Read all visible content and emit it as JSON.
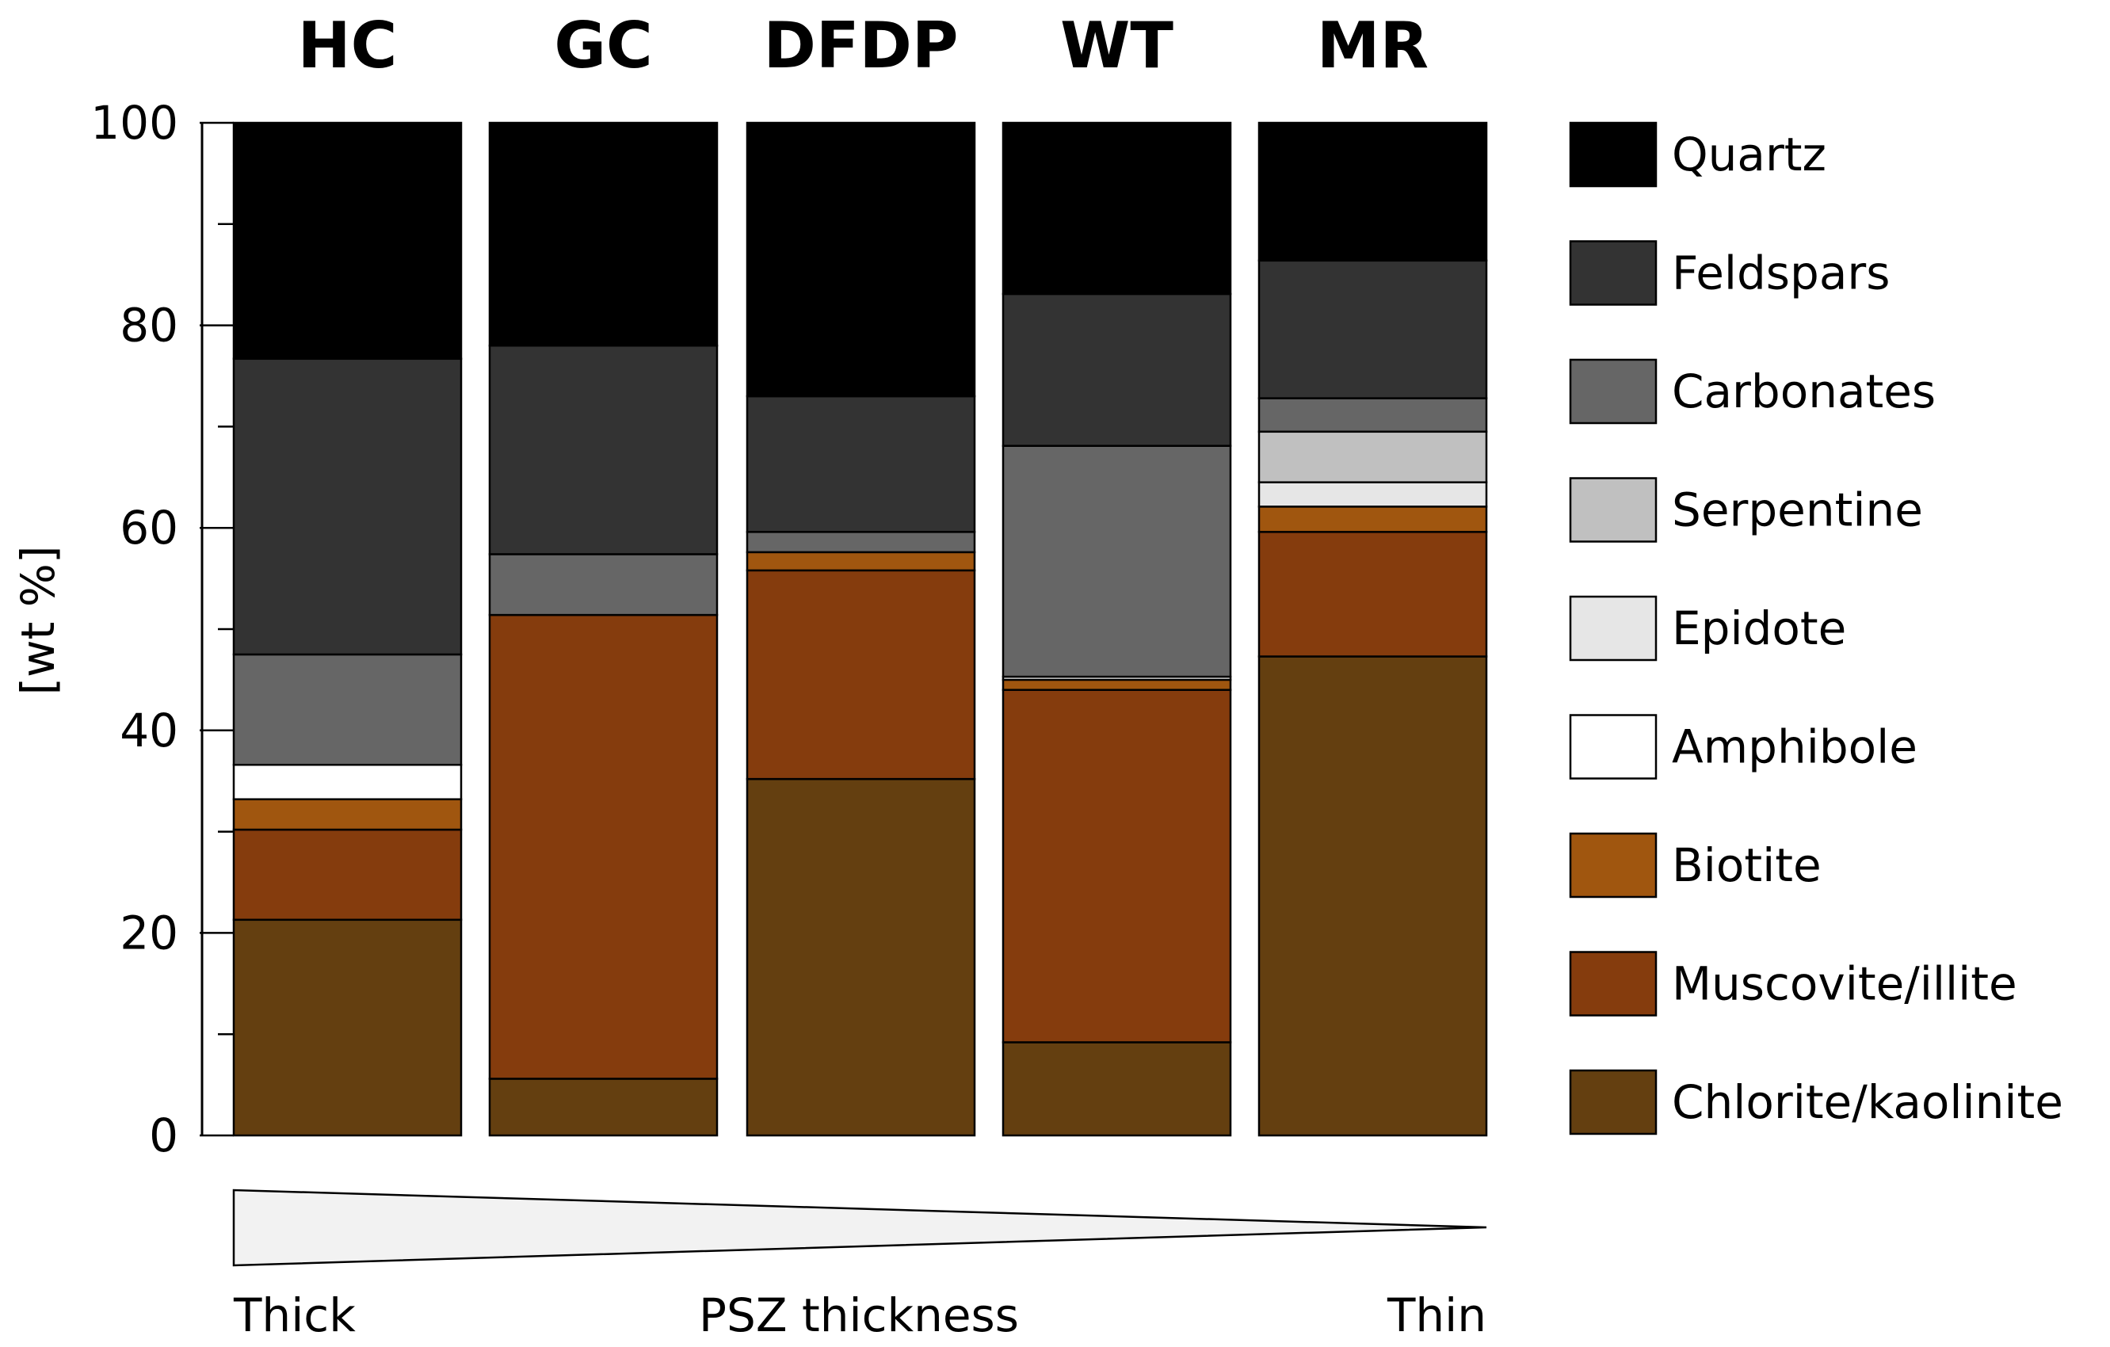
{
  "chart_data": {
    "type": "bar",
    "stacked": true,
    "categories": [
      "HC",
      "GC",
      "DFDP",
      "WT",
      "MR"
    ],
    "ylabel": "[wt %]",
    "ylim": [
      0,
      100
    ],
    "yticks": [
      0,
      20,
      40,
      60,
      80,
      100
    ],
    "series": [
      {
        "name": "Chlorite/kaolinite",
        "color": "#643f10",
        "values": [
          21.3,
          5.6,
          35.2,
          9.2,
          47.3
        ]
      },
      {
        "name": "Muscovite/illite",
        "color": "#853c0d",
        "values": [
          8.9,
          45.8,
          20.6,
          34.8,
          12.3
        ]
      },
      {
        "name": "Biotite",
        "color": "#a0560f",
        "values": [
          3.0,
          0.0,
          1.8,
          1.0,
          2.5
        ]
      },
      {
        "name": "Amphibole",
        "color": "#ffffff",
        "values": [
          3.4,
          0.0,
          0.0,
          0.3,
          0.0
        ]
      },
      {
        "name": "Epidote",
        "color": "#e6e6e6",
        "values": [
          0.0,
          0.0,
          0.0,
          0.0,
          2.4
        ]
      },
      {
        "name": "Serpentine",
        "color": "#c0c0c0",
        "values": [
          0.0,
          0.0,
          0.0,
          0.0,
          5.0
        ]
      },
      {
        "name": "Carbonates",
        "color": "#666666",
        "values": [
          10.9,
          6.0,
          2.0,
          22.8,
          3.3
        ]
      },
      {
        "name": "Feldspars",
        "color": "#333333",
        "values": [
          29.2,
          20.6,
          13.4,
          15.0,
          13.6
        ]
      },
      {
        "name": "Quartz",
        "color": "#000000",
        "values": [
          23.3,
          22.0,
          27.0,
          16.9,
          13.6
        ]
      }
    ],
    "legend_order": [
      "Quartz",
      "Feldspars",
      "Carbonates",
      "Serpentine",
      "Epidote",
      "Amphibole",
      "Biotite",
      "Muscovite/illite",
      "Chlorite/kaolinite"
    ],
    "legend_position": "right",
    "bottom_annotation": {
      "left_label": "Thick",
      "center_label": "PSZ thickness",
      "right_label": "Thin"
    }
  }
}
